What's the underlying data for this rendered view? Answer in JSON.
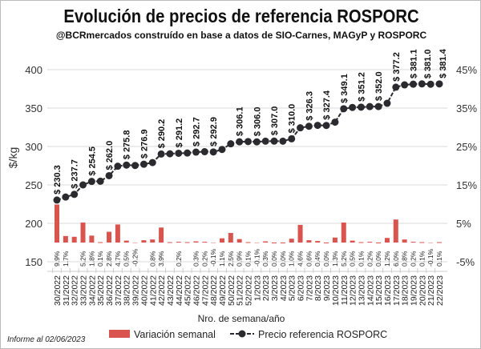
{
  "title": "Evolución de precios de referencia ROSPORC",
  "subtitle": "@BCRmercados construído en base a datos de SIO-Carnes, MAGyP y ROSPORC",
  "note": "Informe al 02/06/2023",
  "chart_data": {
    "type": "bar+line",
    "xlabel": "Nro. de semana/año",
    "ylabel": "$/kg",
    "ylim": [
      150,
      400
    ],
    "yticks": [
      "150",
      "200",
      "250",
      "300",
      "350",
      "400"
    ],
    "y2lim": [
      -5,
      45
    ],
    "y2ticks": [
      "-5%",
      "5%",
      "15%",
      "25%",
      "35%",
      "45%"
    ],
    "grid": true,
    "legend": "bottom",
    "categories": [
      "30/2022",
      "31/2022",
      "32/2022",
      "33/2022",
      "34/2022",
      "35/2022",
      "36/2022",
      "37/2022",
      "38/2022",
      "39/2022",
      "40/2022",
      "41/2022",
      "42/2022",
      "43/2022",
      "44/2022",
      "45/2022",
      "46/2022",
      "47/2022",
      "48/2022",
      "49/2022",
      "50/2022",
      "51/2022",
      "52/2022",
      "1/2023",
      "2/2023",
      "3/2023",
      "4/2023",
      "5/2023",
      "6/2023",
      "7/2023",
      "8/2023",
      "9/2023",
      "10/2023",
      "11/2023",
      "12/2023",
      "13/2023",
      "14/2023",
      "15/2023",
      "16/2023",
      "17/2023",
      "18/2023",
      "19/2023",
      "20/2023",
      "21/2023",
      "22/2023"
    ],
    "series": [
      {
        "name": "Variación semanal",
        "type": "bar",
        "axis": "right",
        "color": "#d9534f",
        "values": [
          9.9,
          1.7,
          1.5,
          5.2,
          1.8,
          0.1,
          2.8,
          4.7,
          0.5,
          -0.2,
          0.6,
          0.8,
          3.9,
          0.1,
          0.2,
          0.1,
          0.3,
          0.2,
          -0.1,
          1.1,
          2.5,
          0.9,
          0.1,
          -0.1,
          0.3,
          0.0,
          0.0,
          1.0,
          4.6,
          0.6,
          0.4,
          0.0,
          1.3,
          5.2,
          0.5,
          0.1,
          0.2,
          0.0,
          1.2,
          6.0,
          0.8,
          0.2,
          0.1,
          -0.1,
          0.1
        ],
        "labels": [
          "9.9%",
          "1.7%",
          "",
          "5.2%",
          "1.8%",
          "0.1%",
          "2.8%",
          "4.7%",
          "0.5%",
          "-0.2%",
          "",
          "0.8%",
          "3.9%",
          "",
          "0.2%",
          "",
          "0.3%",
          "0.2%",
          "-0.1%",
          "1.1%",
          "2.5%",
          "0.9%",
          "0.1%",
          "-0.1%",
          "0.3%",
          "0.0%",
          "0.0%",
          "1.0%",
          "4.6%",
          "0.6%",
          "0.4%",
          "0.0%",
          "1.3%",
          "5.2%",
          "0.5%",
          "0.1%",
          "0.2%",
          "0.0%",
          "1.2%",
          "6.0%",
          "0.8%",
          "0.2%",
          "0.1%",
          "-0.1%",
          "0.1%"
        ]
      },
      {
        "name": "Precio referencia ROSPORC",
        "type": "line",
        "axis": "left",
        "color": "#2b2b2f",
        "values": [
          230.3,
          234.2,
          237.7,
          250.0,
          254.5,
          254.8,
          262.0,
          274.3,
          275.8,
          275.3,
          276.9,
          279.1,
          290.2,
          290.5,
          291.2,
          291.5,
          292.7,
          293.2,
          292.9,
          296.1,
          303.5,
          306.1,
          306.4,
          306.0,
          306.9,
          307.0,
          306.9,
          310.0,
          324.3,
          326.3,
          327.5,
          327.4,
          331.7,
          349.1,
          350.8,
          351.2,
          351.9,
          352.0,
          356.2,
          377.2,
          380.2,
          381.1,
          381.5,
          381.0,
          381.4
        ],
        "labels": [
          "$ 230.3",
          "",
          "$ 237.7",
          "",
          "$ 254.5",
          "",
          "$ 262.0",
          "",
          "$ 275.8",
          "",
          "$ 276.9",
          "",
          "$ 290.2",
          "",
          "$ 291.2",
          "",
          "$ 292.7",
          "",
          "$ 292.9",
          "",
          "",
          "$ 306.1",
          "",
          "$ 306.0",
          "",
          "$ 307.0",
          "",
          "$ 310.0",
          "",
          "$ 326.3",
          "",
          "$ 327.4",
          "",
          "$ 349.1",
          "",
          "$ 351.2",
          "",
          "$ 352.0",
          "",
          "$ 377.2",
          "",
          "$ 381.1",
          "",
          "$ 381.0",
          "$ 381.4"
        ]
      }
    ]
  }
}
